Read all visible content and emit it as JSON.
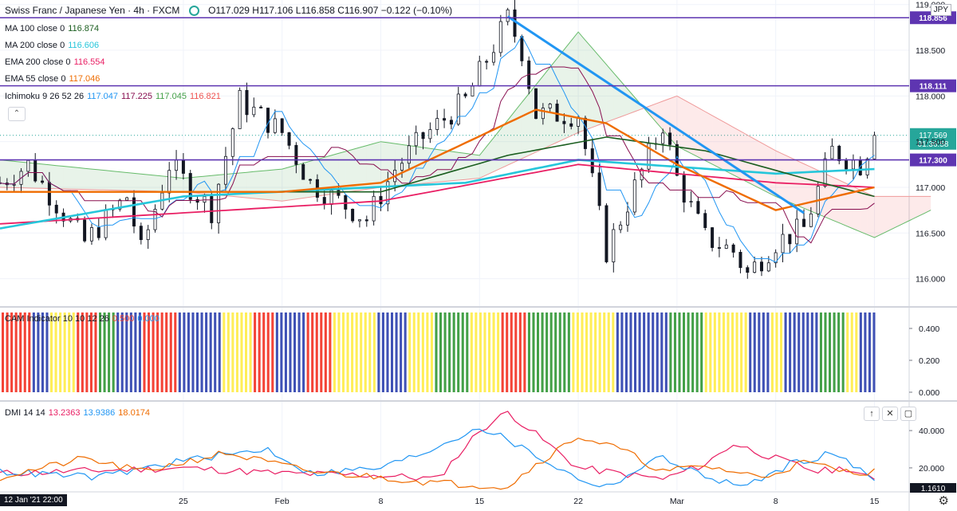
{
  "header": {
    "symbol": "Swiss Franc / Japanese Yen · 4h · FXCM",
    "ohlc": "O117.029 H117.106 L116.858 C116.907 −0.122 (−0.10%)",
    "currency_button": "JPY"
  },
  "legend": [
    {
      "label": "MA 100 close 0",
      "value": "116.874",
      "color": "#1b5e20"
    },
    {
      "label": "MA 200 close 0",
      "value": "116.606",
      "color": "#26c6da"
    },
    {
      "label": "EMA 200 close 0",
      "value": "116.554",
      "color": "#e91e63"
    },
    {
      "label": "EMA 55 close 0",
      "value": "117.046",
      "color": "#ef6c00"
    }
  ],
  "ichimoku": {
    "label": "Ichimoku 9 26 52 26",
    "values": [
      "117.047",
      "117.225",
      "117.045",
      "116.821"
    ],
    "colors": [
      "#2196f3",
      "#880e4f",
      "#43a047",
      "#ef5350"
    ]
  },
  "cam": {
    "label": "CAM Indicator 10 10 12 26",
    "values": [
      "0.500",
      "0.000"
    ],
    "colors": [
      "#f44336",
      "#2196f3"
    ]
  },
  "dmi": {
    "label": "DMI 14 14",
    "values": [
      "13.2363",
      "13.9386",
      "18.0174"
    ],
    "colors": [
      "#e91e63",
      "#2196f3",
      "#ef6c00"
    ]
  },
  "price_axis": {
    "ticks": [
      "119.000",
      "118.500",
      "118.000",
      "117.500",
      "117.000",
      "116.500",
      "116.000"
    ]
  },
  "cam_axis": {
    "ticks": [
      "0.400",
      "0.200",
      "0.000"
    ]
  },
  "dmi_axis": {
    "ticks": [
      "40.000",
      "20.000"
    ]
  },
  "price_badges": [
    {
      "text": "118.856",
      "value": 118.856,
      "color": "#5e35b1"
    },
    {
      "text": "118.111",
      "value": 118.111,
      "color": "#5e35b1"
    },
    {
      "text": "117.300",
      "value": 117.3,
      "color": "#5e35b1"
    }
  ],
  "last_price": {
    "price": "117.569",
    "countdown": "01:36:58",
    "color": "#26a69a"
  },
  "dmi_last_badge": "1.1610",
  "time_axis": {
    "ticks": [
      "25",
      "Feb",
      "8",
      "15",
      "22",
      "Mar",
      "8",
      "15"
    ],
    "cursor_label": "12 Jan '21  22:00"
  },
  "chart_data": [
    {
      "type": "candlestick",
      "title": "Swiss Franc / Japanese Yen · 4h · FXCM",
      "ylim": [
        115.7,
        119.05
      ],
      "horizontal_lines": [
        118.856,
        118.111,
        117.3
      ],
      "trendline": {
        "from": [
          "Feb 17",
          118.87
        ],
        "to": [
          "Mar 10",
          116.72
        ],
        "color": "#2196f3"
      },
      "close_waypoints": [
        {
          "date": "Jan 12",
          "close": 117.05
        },
        {
          "date": "Jan 14",
          "close": 117.25
        },
        {
          "date": "Jan 18",
          "close": 116.4
        },
        {
          "date": "Jan 21",
          "close": 116.9
        },
        {
          "date": "Jan 22",
          "close": 116.3
        },
        {
          "date": "Jan 24",
          "close": 117.25
        },
        {
          "date": "Jan 27",
          "close": 116.75
        },
        {
          "date": "Jan 29",
          "close": 117.95
        },
        {
          "date": "Feb 1",
          "close": 117.6
        },
        {
          "date": "Feb 3",
          "close": 117.05
        },
        {
          "date": "Feb 7",
          "close": 116.65
        },
        {
          "date": "Feb 9",
          "close": 117.2
        },
        {
          "date": "Feb 11",
          "close": 117.55
        },
        {
          "date": "Feb 14",
          "close": 117.95
        },
        {
          "date": "Feb 17",
          "close": 118.85
        },
        {
          "date": "Feb 18",
          "close": 118.5
        },
        {
          "date": "Feb 19",
          "close": 117.8
        },
        {
          "date": "Feb 22",
          "close": 117.8
        },
        {
          "date": "Feb 24",
          "close": 116.3
        },
        {
          "date": "Feb 28",
          "close": 117.7
        },
        {
          "date": "Mar 1",
          "close": 117.1
        },
        {
          "date": "Mar 3",
          "close": 116.45
        },
        {
          "date": "Mar 5",
          "close": 116.3
        },
        {
          "date": "Mar 6",
          "close": 116.05
        },
        {
          "date": "Mar 8",
          "close": 116.4
        },
        {
          "date": "Mar 10",
          "close": 116.55
        },
        {
          "date": "Mar 12",
          "close": 117.4
        },
        {
          "date": "Mar 14",
          "close": 117.25
        },
        {
          "date": "Mar 15",
          "close": 117.57
        }
      ],
      "ma100": [
        {
          "date": "Jan 12",
          "v": 116.95
        },
        {
          "date": "Feb 8",
          "v": 116.95
        },
        {
          "date": "Feb 17",
          "v": 117.35
        },
        {
          "date": "Feb 24",
          "v": 117.55
        },
        {
          "date": "Mar 3",
          "v": 117.4
        },
        {
          "date": "Mar 10",
          "v": 117.1
        },
        {
          "date": "Mar 15",
          "v": 116.9
        }
      ],
      "ma200": [
        {
          "date": "Jan 12",
          "v": 116.55
        },
        {
          "date": "Jan 25",
          "v": 116.9
        },
        {
          "date": "Feb 14",
          "v": 117.05
        },
        {
          "date": "Feb 22",
          "v": 117.3
        },
        {
          "date": "Mar 8",
          "v": 117.15
        },
        {
          "date": "Mar 15",
          "v": 117.2
        }
      ],
      "ema200": [
        {
          "date": "Jan 12",
          "v": 116.6
        },
        {
          "date": "Feb 8",
          "v": 116.85
        },
        {
          "date": "Feb 22",
          "v": 117.25
        },
        {
          "date": "Mar 8",
          "v": 117.05
        },
        {
          "date": "Mar 15",
          "v": 117.0
        }
      ],
      "ema55": [
        {
          "date": "Jan 12",
          "v": 116.95
        },
        {
          "date": "Feb 1",
          "v": 116.95
        },
        {
          "date": "Feb 8",
          "v": 117.05
        },
        {
          "date": "Feb 19",
          "v": 117.85
        },
        {
          "date": "Feb 24",
          "v": 117.7
        },
        {
          "date": "Mar 1",
          "v": 117.25
        },
        {
          "date": "Mar 8",
          "v": 116.75
        },
        {
          "date": "Mar 15",
          "v": 117.0
        }
      ],
      "cloud": [
        {
          "date": "Jan 12",
          "a": 117.3,
          "b": 117.0
        },
        {
          "date": "Jan 25",
          "a": 117.1,
          "b": 116.95
        },
        {
          "date": "Feb 1",
          "a": 117.2,
          "b": 116.85
        },
        {
          "date": "Feb 8",
          "a": 117.5,
          "b": 117.0
        },
        {
          "date": "Feb 15",
          "a": 117.35,
          "b": 117.1
        },
        {
          "date": "Feb 22",
          "a": 118.7,
          "b": 117.6
        },
        {
          "date": "Mar 1",
          "a": 117.45,
          "b": 118.0
        },
        {
          "date": "Mar 8",
          "a": 116.9,
          "b": 117.4
        },
        {
          "date": "Mar 15",
          "a": 116.45,
          "b": 116.9
        },
        {
          "date": "Mar 19",
          "a": 116.75,
          "b": 116.9
        }
      ]
    },
    {
      "type": "bar",
      "title": "CAM Indicator 10 10 12 26",
      "ylim": [
        0,
        0.5
      ],
      "sequence": [
        {
          "color": "red",
          "count": 7
        },
        {
          "color": "blue",
          "count": 4
        },
        {
          "color": "yellow",
          "count": 6
        },
        {
          "color": "red",
          "count": 5
        },
        {
          "color": "green",
          "count": 4
        },
        {
          "color": "blue",
          "count": 6
        },
        {
          "color": "red",
          "count": 8
        },
        {
          "color": "blue",
          "count": 10
        },
        {
          "color": "yellow",
          "count": 7
        },
        {
          "color": "red",
          "count": 5
        },
        {
          "color": "blue",
          "count": 7
        },
        {
          "color": "red",
          "count": 6
        },
        {
          "color": "yellow",
          "count": 10
        },
        {
          "color": "blue",
          "count": 7
        },
        {
          "color": "yellow",
          "count": 6
        },
        {
          "color": "green",
          "count": 8
        },
        {
          "color": "yellow",
          "count": 7
        },
        {
          "color": "red",
          "count": 6
        },
        {
          "color": "green",
          "count": 10
        },
        {
          "color": "yellow",
          "count": 10
        },
        {
          "color": "blue",
          "count": 12
        },
        {
          "color": "green",
          "count": 8
        },
        {
          "color": "yellow",
          "count": 10
        },
        {
          "color": "blue",
          "count": 5
        },
        {
          "color": "yellow",
          "count": 3
        },
        {
          "color": "blue",
          "count": 8
        },
        {
          "color": "green",
          "count": 6
        },
        {
          "color": "yellow",
          "count": 3
        },
        {
          "color": "blue",
          "count": 4
        }
      ]
    },
    {
      "type": "line",
      "title": "DMI 14 14",
      "ylim": [
        8,
        55
      ],
      "series": [
        {
          "name": "13.2363",
          "color": "#e91e63",
          "points": [
            {
              "date": "Jan 12",
              "v": 17
            },
            {
              "date": "Jan 25",
              "v": 20
            },
            {
              "date": "Feb 1",
              "v": 17
            },
            {
              "date": "Feb 8",
              "v": 16
            },
            {
              "date": "Feb 12",
              "v": 14
            },
            {
              "date": "Feb 15",
              "v": 40
            },
            {
              "date": "Feb 17",
              "v": 50
            },
            {
              "date": "Feb 22",
              "v": 20
            },
            {
              "date": "Feb 25",
              "v": 17
            },
            {
              "date": "Feb 28",
              "v": 14
            },
            {
              "date": "Mar 3",
              "v": 22
            },
            {
              "date": "Mar 5",
              "v": 33
            },
            {
              "date": "Mar 8",
              "v": 25
            },
            {
              "date": "Mar 11",
              "v": 18
            },
            {
              "date": "Mar 13",
              "v": 20
            },
            {
              "date": "Mar 15",
              "v": 13
            }
          ]
        },
        {
          "name": "13.9386",
          "color": "#2196f3",
          "points": [
            {
              "date": "Jan 12",
              "v": 18
            },
            {
              "date": "Jan 19",
              "v": 15
            },
            {
              "date": "Jan 25",
              "v": 24
            },
            {
              "date": "Jan 31",
              "v": 30
            },
            {
              "date": "Feb 3",
              "v": 17
            },
            {
              "date": "Feb 8",
              "v": 20
            },
            {
              "date": "Feb 11",
              "v": 28
            },
            {
              "date": "Feb 15",
              "v": 42
            },
            {
              "date": "Feb 17",
              "v": 35
            },
            {
              "date": "Feb 22",
              "v": 14
            },
            {
              "date": "Feb 24",
              "v": 10
            },
            {
              "date": "Feb 28",
              "v": 26
            },
            {
              "date": "Mar 3",
              "v": 15
            },
            {
              "date": "Mar 6",
              "v": 10
            },
            {
              "date": "Mar 9",
              "v": 22
            },
            {
              "date": "Mar 12",
              "v": 28
            },
            {
              "date": "Mar 15",
              "v": 14
            }
          ]
        },
        {
          "name": "18.0174",
          "color": "#ef6c00",
          "points": [
            {
              "date": "Jan 12",
              "v": 15
            },
            {
              "date": "Jan 18",
              "v": 25
            },
            {
              "date": "Jan 22",
              "v": 18
            },
            {
              "date": "Jan 28",
              "v": 28
            },
            {
              "date": "Feb 3",
              "v": 18
            },
            {
              "date": "Feb 8",
              "v": 15
            },
            {
              "date": "Feb 12",
              "v": 12
            },
            {
              "date": "Feb 17",
              "v": 10
            },
            {
              "date": "Feb 19",
              "v": 22
            },
            {
              "date": "Feb 22",
              "v": 37
            },
            {
              "date": "Feb 25",
              "v": 30
            },
            {
              "date": "Feb 28",
              "v": 18
            },
            {
              "date": "Mar 3",
              "v": 21
            },
            {
              "date": "Mar 7",
              "v": 15
            },
            {
              "date": "Mar 10",
              "v": 23
            },
            {
              "date": "Mar 13",
              "v": 18
            },
            {
              "date": "Mar 15",
              "v": 18
            }
          ]
        }
      ]
    }
  ]
}
